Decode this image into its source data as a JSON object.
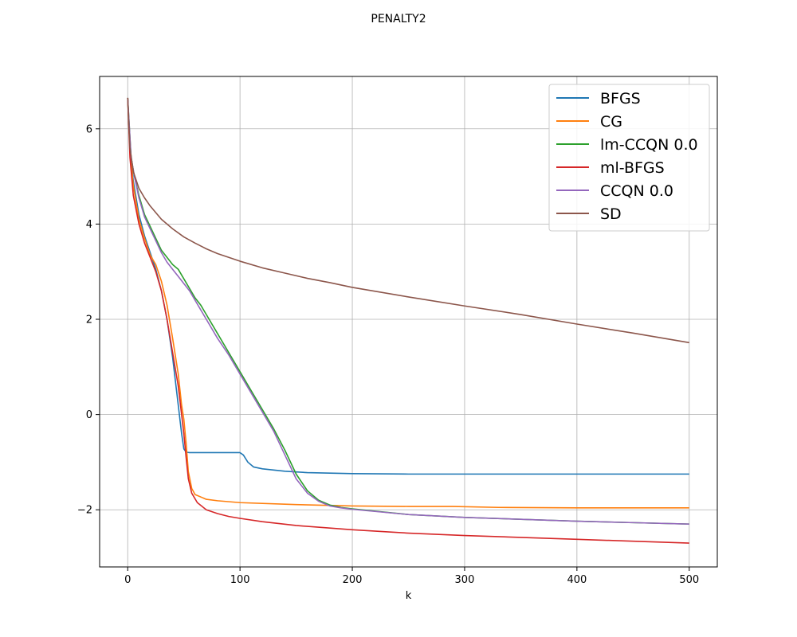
{
  "chart_data": {
    "type": "line",
    "title": "PENALTY2",
    "xlabel": "k",
    "ylabel": "",
    "xlim": [
      -25,
      525
    ],
    "ylim": [
      -3.2,
      7.1
    ],
    "xticks": [
      0,
      100,
      200,
      300,
      400,
      500
    ],
    "yticks": [
      -2,
      0,
      2,
      4,
      6
    ],
    "xtick_labels": [
      "0",
      "100",
      "200",
      "300",
      "400",
      "500"
    ],
    "ytick_labels": [
      "−2",
      "0",
      "2",
      "4",
      "6"
    ],
    "grid": true,
    "legend_position": "top-right",
    "series": [
      {
        "name": "BFGS",
        "color": "#1f77b4",
        "points": [
          [
            0,
            6.65
          ],
          [
            2,
            5.6
          ],
          [
            5,
            4.9
          ],
          [
            10,
            4.2
          ],
          [
            15,
            3.75
          ],
          [
            20,
            3.4
          ],
          [
            25,
            3.05
          ],
          [
            30,
            2.6
          ],
          [
            35,
            2.0
          ],
          [
            40,
            1.2
          ],
          [
            45,
            0.2
          ],
          [
            48,
            -0.4
          ],
          [
            50,
            -0.72
          ],
          [
            52,
            -0.79
          ],
          [
            55,
            -0.8
          ],
          [
            70,
            -0.8
          ],
          [
            90,
            -0.8
          ],
          [
            100,
            -0.8
          ],
          [
            103,
            -0.85
          ],
          [
            107,
            -1.0
          ],
          [
            112,
            -1.1
          ],
          [
            120,
            -1.14
          ],
          [
            140,
            -1.19
          ],
          [
            160,
            -1.22
          ],
          [
            200,
            -1.24
          ],
          [
            250,
            -1.25
          ],
          [
            300,
            -1.25
          ],
          [
            400,
            -1.25
          ],
          [
            500,
            -1.25
          ]
        ]
      },
      {
        "name": "CG",
        "color": "#ff7f0e",
        "points": [
          [
            0,
            6.65
          ],
          [
            2,
            5.6
          ],
          [
            5,
            4.8
          ],
          [
            10,
            4.1
          ],
          [
            15,
            3.7
          ],
          [
            20,
            3.35
          ],
          [
            25,
            3.15
          ],
          [
            30,
            2.8
          ],
          [
            35,
            2.3
          ],
          [
            40,
            1.6
          ],
          [
            45,
            0.85
          ],
          [
            48,
            0.2
          ],
          [
            50,
            -0.1
          ],
          [
            52,
            -0.6
          ],
          [
            54,
            -1.2
          ],
          [
            57,
            -1.55
          ],
          [
            60,
            -1.68
          ],
          [
            70,
            -1.78
          ],
          [
            80,
            -1.81
          ],
          [
            100,
            -1.85
          ],
          [
            150,
            -1.89
          ],
          [
            200,
            -1.92
          ],
          [
            250,
            -1.93
          ],
          [
            290,
            -1.93
          ],
          [
            330,
            -1.95
          ],
          [
            400,
            -1.96
          ],
          [
            450,
            -1.96
          ],
          [
            500,
            -1.96
          ]
        ]
      },
      {
        "name": "lm-CCQN 0.0",
        "color": "#2ca02c",
        "points": [
          [
            0,
            6.65
          ],
          [
            3,
            5.4
          ],
          [
            6,
            5.0
          ],
          [
            10,
            4.6
          ],
          [
            15,
            4.2
          ],
          [
            20,
            3.95
          ],
          [
            25,
            3.7
          ],
          [
            30,
            3.45
          ],
          [
            35,
            3.3
          ],
          [
            40,
            3.15
          ],
          [
            45,
            3.05
          ],
          [
            50,
            2.85
          ],
          [
            55,
            2.65
          ],
          [
            60,
            2.45
          ],
          [
            65,
            2.3
          ],
          [
            70,
            2.1
          ],
          [
            80,
            1.7
          ],
          [
            90,
            1.3
          ],
          [
            100,
            0.9
          ],
          [
            110,
            0.5
          ],
          [
            120,
            0.1
          ],
          [
            130,
            -0.3
          ],
          [
            140,
            -0.75
          ],
          [
            150,
            -1.25
          ],
          [
            160,
            -1.6
          ],
          [
            170,
            -1.8
          ],
          [
            180,
            -1.9
          ],
          [
            190,
            -1.95
          ],
          [
            200,
            -1.98
          ],
          [
            250,
            -2.1
          ],
          [
            300,
            -2.16
          ],
          [
            350,
            -2.2
          ],
          [
            400,
            -2.24
          ],
          [
            450,
            -2.27
          ],
          [
            500,
            -2.3
          ]
        ]
      },
      {
        "name": "ml-BFGS",
        "color": "#d62728",
        "points": [
          [
            0,
            6.65
          ],
          [
            2,
            5.4
          ],
          [
            5,
            4.6
          ],
          [
            10,
            4.0
          ],
          [
            15,
            3.6
          ],
          [
            20,
            3.3
          ],
          [
            25,
            3.0
          ],
          [
            30,
            2.6
          ],
          [
            35,
            2.0
          ],
          [
            40,
            1.3
          ],
          [
            45,
            0.6
          ],
          [
            48,
            0.0
          ],
          [
            50,
            -0.4
          ],
          [
            52,
            -0.9
          ],
          [
            54,
            -1.35
          ],
          [
            57,
            -1.65
          ],
          [
            62,
            -1.85
          ],
          [
            70,
            -2.0
          ],
          [
            80,
            -2.08
          ],
          [
            90,
            -2.14
          ],
          [
            100,
            -2.18
          ],
          [
            120,
            -2.25
          ],
          [
            150,
            -2.33
          ],
          [
            200,
            -2.42
          ],
          [
            250,
            -2.49
          ],
          [
            300,
            -2.54
          ],
          [
            350,
            -2.58
          ],
          [
            400,
            -2.62
          ],
          [
            450,
            -2.66
          ],
          [
            500,
            -2.7
          ]
        ]
      },
      {
        "name": "CCQN 0.0",
        "color": "#9467bd",
        "points": [
          [
            0,
            6.65
          ],
          [
            3,
            5.4
          ],
          [
            6,
            5.0
          ],
          [
            10,
            4.55
          ],
          [
            15,
            4.15
          ],
          [
            20,
            3.9
          ],
          [
            25,
            3.65
          ],
          [
            30,
            3.4
          ],
          [
            35,
            3.2
          ],
          [
            40,
            3.05
          ],
          [
            45,
            2.9
          ],
          [
            50,
            2.75
          ],
          [
            55,
            2.6
          ],
          [
            60,
            2.4
          ],
          [
            65,
            2.2
          ],
          [
            70,
            2.0
          ],
          [
            80,
            1.6
          ],
          [
            90,
            1.25
          ],
          [
            100,
            0.85
          ],
          [
            110,
            0.45
          ],
          [
            120,
            0.05
          ],
          [
            130,
            -0.35
          ],
          [
            140,
            -0.85
          ],
          [
            150,
            -1.35
          ],
          [
            160,
            -1.65
          ],
          [
            170,
            -1.82
          ],
          [
            180,
            -1.92
          ],
          [
            190,
            -1.96
          ],
          [
            200,
            -1.99
          ],
          [
            250,
            -2.1
          ],
          [
            300,
            -2.16
          ],
          [
            350,
            -2.2
          ],
          [
            400,
            -2.24
          ],
          [
            450,
            -2.27
          ],
          [
            500,
            -2.3
          ]
        ]
      },
      {
        "name": "SD",
        "color": "#8c564b",
        "points": [
          [
            0,
            6.65
          ],
          [
            2,
            5.6
          ],
          [
            5,
            5.1
          ],
          [
            10,
            4.75
          ],
          [
            15,
            4.55
          ],
          [
            20,
            4.38
          ],
          [
            30,
            4.1
          ],
          [
            40,
            3.9
          ],
          [
            50,
            3.73
          ],
          [
            60,
            3.6
          ],
          [
            70,
            3.48
          ],
          [
            80,
            3.38
          ],
          [
            90,
            3.3
          ],
          [
            100,
            3.22
          ],
          [
            120,
            3.08
          ],
          [
            140,
            2.97
          ],
          [
            160,
            2.86
          ],
          [
            180,
            2.77
          ],
          [
            200,
            2.67
          ],
          [
            250,
            2.47
          ],
          [
            300,
            2.28
          ],
          [
            350,
            2.1
          ],
          [
            400,
            1.9
          ],
          [
            450,
            1.71
          ],
          [
            500,
            1.51
          ]
        ]
      }
    ]
  }
}
